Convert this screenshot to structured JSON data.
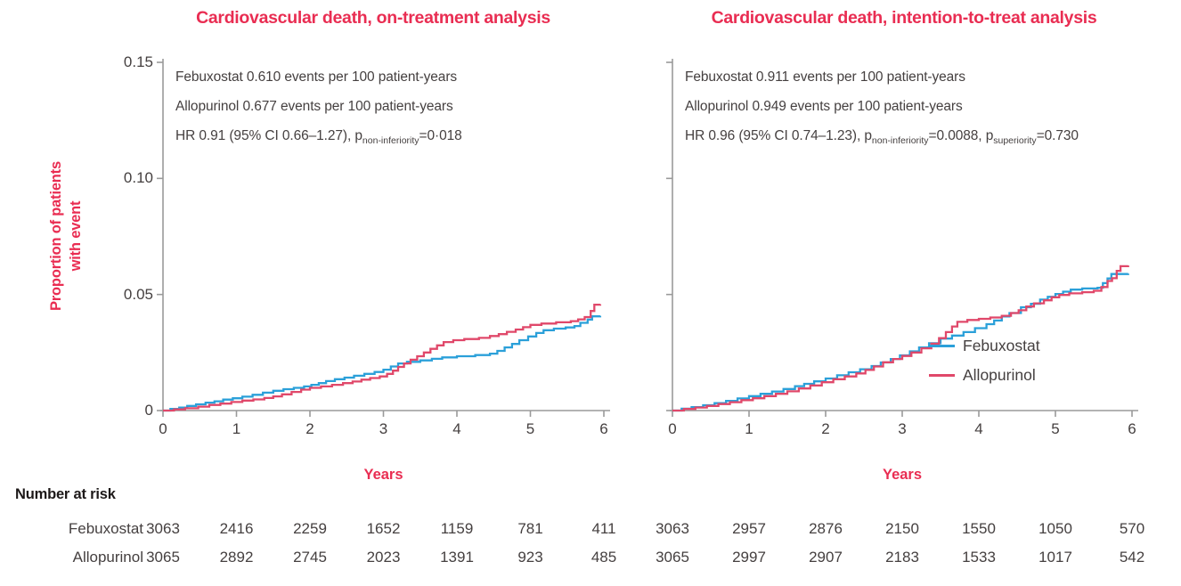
{
  "figure": {
    "colors": {
      "accent_pink": "#e92d52",
      "febuxostat_blue": "#2ba0d9",
      "allopurinol_red": "#e0486a",
      "axis_gray": "#9a9a9a",
      "text_dark": "#454040",
      "header_dark": "#1d1919"
    },
    "ylabel_line1": "Proportion of patients",
    "ylabel_line2": "with event",
    "number_at_risk_header": "Number at risk",
    "risk_row_labels": [
      "Febuxostat",
      "Allopurinol"
    ]
  },
  "chart_data": [
    {
      "type": "line",
      "title": "Cardiovascular death, on-treatment analysis",
      "xlabel": "Years",
      "ylabel": "Proportion of patients with event",
      "xlim": [
        0,
        6
      ],
      "ylim": [
        0,
        0.15
      ],
      "xticks": [
        0,
        1,
        2,
        3,
        4,
        5,
        6
      ],
      "yticks": [
        0,
        0.05,
        0.1,
        0.15
      ],
      "ytick_labels": [
        "0",
        "0.05",
        "0.10",
        "0.15"
      ],
      "grid": false,
      "annotations": {
        "line1": "Febuxostat 0.610 events per 100 patient-years",
        "line2": "Allopurinol 0.677 events per 100 patient-years",
        "hr_segments": [
          {
            "text": "HR 0.91 (95% CI 0.66–1.27), p"
          },
          {
            "sub": "non-inferiority"
          },
          {
            "text": "=0·018"
          }
        ]
      },
      "series": [
        {
          "name": "Febuxostat",
          "color_key": "febuxostat_blue",
          "step": true,
          "points": [
            [
              0,
              0
            ],
            [
              0.1,
              0.0007
            ],
            [
              0.22,
              0.0013
            ],
            [
              0.33,
              0.002
            ],
            [
              0.45,
              0.0027
            ],
            [
              0.58,
              0.0034
            ],
            [
              0.7,
              0.004
            ],
            [
              0.82,
              0.0047
            ],
            [
              0.95,
              0.0053
            ],
            [
              1.08,
              0.006
            ],
            [
              1.22,
              0.0068
            ],
            [
              1.36,
              0.0077
            ],
            [
              1.5,
              0.0085
            ],
            [
              1.64,
              0.0092
            ],
            [
              1.78,
              0.0098
            ],
            [
              1.92,
              0.0104
            ],
            [
              2.02,
              0.0111
            ],
            [
              2.12,
              0.0118
            ],
            [
              2.22,
              0.0127
            ],
            [
              2.34,
              0.0135
            ],
            [
              2.47,
              0.0142
            ],
            [
              2.6,
              0.015
            ],
            [
              2.74,
              0.0158
            ],
            [
              2.88,
              0.0166
            ],
            [
              3.0,
              0.0176
            ],
            [
              3.1,
              0.019
            ],
            [
              3.2,
              0.0203
            ],
            [
              3.32,
              0.021
            ],
            [
              3.5,
              0.0216
            ],
            [
              3.66,
              0.0223
            ],
            [
              3.8,
              0.0229
            ],
            [
              4.0,
              0.0234
            ],
            [
              4.25,
              0.0239
            ],
            [
              4.45,
              0.0245
            ],
            [
              4.55,
              0.0257
            ],
            [
              4.65,
              0.0272
            ],
            [
              4.75,
              0.0287
            ],
            [
              4.85,
              0.0303
            ],
            [
              4.97,
              0.0319
            ],
            [
              5.08,
              0.0334
            ],
            [
              5.18,
              0.0346
            ],
            [
              5.32,
              0.0353
            ],
            [
              5.48,
              0.0358
            ],
            [
              5.6,
              0.0364
            ],
            [
              5.68,
              0.0378
            ],
            [
              5.78,
              0.0392
            ],
            [
              5.84,
              0.0406
            ],
            [
              5.95,
              0.0408
            ]
          ]
        },
        {
          "name": "Allopurinol",
          "color_key": "allopurinol_red",
          "step": true,
          "points": [
            [
              0,
              0
            ],
            [
              0.15,
              0.0005
            ],
            [
              0.3,
              0.001
            ],
            [
              0.48,
              0.0017
            ],
            [
              0.63,
              0.0024
            ],
            [
              0.78,
              0.003
            ],
            [
              0.93,
              0.0037
            ],
            [
              1.08,
              0.0043
            ],
            [
              1.23,
              0.0048
            ],
            [
              1.38,
              0.0054
            ],
            [
              1.5,
              0.0061
            ],
            [
              1.62,
              0.007
            ],
            [
              1.75,
              0.008
            ],
            [
              1.88,
              0.009
            ],
            [
              2.0,
              0.0098
            ],
            [
              2.15,
              0.0104
            ],
            [
              2.3,
              0.0111
            ],
            [
              2.45,
              0.0118
            ],
            [
              2.58,
              0.0125
            ],
            [
              2.7,
              0.0133
            ],
            [
              2.82,
              0.014
            ],
            [
              2.95,
              0.0147
            ],
            [
              3.05,
              0.0158
            ],
            [
              3.13,
              0.0172
            ],
            [
              3.2,
              0.0188
            ],
            [
              3.28,
              0.0203
            ],
            [
              3.37,
              0.0219
            ],
            [
              3.46,
              0.0234
            ],
            [
              3.55,
              0.025
            ],
            [
              3.64,
              0.0266
            ],
            [
              3.73,
              0.0281
            ],
            [
              3.82,
              0.0295
            ],
            [
              3.95,
              0.0303
            ],
            [
              4.1,
              0.0308
            ],
            [
              4.3,
              0.0313
            ],
            [
              4.45,
              0.0321
            ],
            [
              4.57,
              0.0329
            ],
            [
              4.68,
              0.0339
            ],
            [
              4.8,
              0.0349
            ],
            [
              4.9,
              0.0359
            ],
            [
              5.0,
              0.0369
            ],
            [
              5.15,
              0.0375
            ],
            [
              5.35,
              0.038
            ],
            [
              5.55,
              0.0385
            ],
            [
              5.65,
              0.0393
            ],
            [
              5.74,
              0.0403
            ],
            [
              5.82,
              0.0429
            ],
            [
              5.87,
              0.0456
            ],
            [
              5.95,
              0.0458
            ]
          ]
        }
      ],
      "number_at_risk": {
        "Febuxostat": [
          3063,
          2416,
          2259,
          1652,
          1159,
          781,
          411
        ],
        "Allopurinol": [
          3065,
          2892,
          2745,
          2023,
          1391,
          923,
          485
        ]
      }
    },
    {
      "type": "line",
      "title": "Cardiovascular death, intention-to-treat analysis",
      "xlabel": "Years",
      "ylabel": "Proportion of patients with event",
      "xlim": [
        0,
        6
      ],
      "ylim": [
        0,
        0.15
      ],
      "xticks": [
        0,
        1,
        2,
        3,
        4,
        5,
        6
      ],
      "yticks": [
        0,
        0.05,
        0.1,
        0.15
      ],
      "ytick_labels": [],
      "grid": false,
      "legend": {
        "position": "middle-right",
        "entries": [
          "Febuxostat",
          "Allopurinol"
        ]
      },
      "annotations": {
        "line1": "Febuxostat 0.911 events per 100 patient-years",
        "line2": "Allopurinol 0.949 events per 100 patient-years",
        "hr_segments": [
          {
            "text": "HR 0.96 (95% CI 0.74–1.23), p"
          },
          {
            "sub": "non-inferiority"
          },
          {
            "text": "=0.0088, p"
          },
          {
            "sub": "superiority"
          },
          {
            "text": "=0.730"
          }
        ]
      },
      "series": [
        {
          "name": "Febuxostat",
          "color_key": "febuxostat_blue",
          "step": true,
          "points": [
            [
              0,
              0
            ],
            [
              0.12,
              0.0008
            ],
            [
              0.25,
              0.0015
            ],
            [
              0.4,
              0.0023
            ],
            [
              0.55,
              0.0032
            ],
            [
              0.7,
              0.0042
            ],
            [
              0.85,
              0.0052
            ],
            [
              1.0,
              0.0062
            ],
            [
              1.15,
              0.0072
            ],
            [
              1.3,
              0.0082
            ],
            [
              1.45,
              0.0093
            ],
            [
              1.6,
              0.0105
            ],
            [
              1.72,
              0.0115
            ],
            [
              1.85,
              0.0126
            ],
            [
              2.0,
              0.0138
            ],
            [
              2.15,
              0.0152
            ],
            [
              2.3,
              0.0165
            ],
            [
              2.45,
              0.0178
            ],
            [
              2.6,
              0.0192
            ],
            [
              2.72,
              0.0207
            ],
            [
              2.85,
              0.0222
            ],
            [
              2.97,
              0.0238
            ],
            [
              3.1,
              0.0255
            ],
            [
              3.22,
              0.0272
            ],
            [
              3.35,
              0.029
            ],
            [
              3.5,
              0.031
            ],
            [
              3.65,
              0.0323
            ],
            [
              3.8,
              0.0338
            ],
            [
              3.95,
              0.0355
            ],
            [
              4.1,
              0.0372
            ],
            [
              4.2,
              0.0388
            ],
            [
              4.3,
              0.0405
            ],
            [
              4.4,
              0.042
            ],
            [
              4.55,
              0.0445
            ],
            [
              4.68,
              0.046
            ],
            [
              4.8,
              0.0478
            ],
            [
              4.9,
              0.049
            ],
            [
              5.0,
              0.0502
            ],
            [
              5.1,
              0.0512
            ],
            [
              5.2,
              0.0521
            ],
            [
              5.35,
              0.0526
            ],
            [
              5.55,
              0.0529
            ],
            [
              5.62,
              0.0549
            ],
            [
              5.68,
              0.0569
            ],
            [
              5.73,
              0.0588
            ],
            [
              5.95,
              0.059
            ]
          ]
        },
        {
          "name": "Allopurinol",
          "color_key": "allopurinol_red",
          "step": true,
          "points": [
            [
              0,
              0
            ],
            [
              0.15,
              0.0007
            ],
            [
              0.3,
              0.0013
            ],
            [
              0.45,
              0.002
            ],
            [
              0.6,
              0.0028
            ],
            [
              0.75,
              0.0036
            ],
            [
              0.9,
              0.0045
            ],
            [
              1.05,
              0.0053
            ],
            [
              1.2,
              0.0062
            ],
            [
              1.35,
              0.0072
            ],
            [
              1.5,
              0.0083
            ],
            [
              1.65,
              0.0095
            ],
            [
              1.8,
              0.0108
            ],
            [
              1.95,
              0.0122
            ],
            [
              2.1,
              0.0135
            ],
            [
              2.25,
              0.0147
            ],
            [
              2.4,
              0.016
            ],
            [
              2.52,
              0.0175
            ],
            [
              2.63,
              0.019
            ],
            [
              2.75,
              0.0208
            ],
            [
              2.88,
              0.0222
            ],
            [
              3.0,
              0.0235
            ],
            [
              3.12,
              0.025
            ],
            [
              3.25,
              0.0268
            ],
            [
              3.38,
              0.0288
            ],
            [
              3.48,
              0.0312
            ],
            [
              3.57,
              0.0338
            ],
            [
              3.65,
              0.0362
            ],
            [
              3.72,
              0.0382
            ],
            [
              3.85,
              0.039
            ],
            [
              4.0,
              0.0395
            ],
            [
              4.15,
              0.0401
            ],
            [
              4.3,
              0.0408
            ],
            [
              4.42,
              0.042
            ],
            [
              4.52,
              0.0432
            ],
            [
              4.62,
              0.0448
            ],
            [
              4.72,
              0.0462
            ],
            [
              4.85,
              0.0475
            ],
            [
              4.95,
              0.0488
            ],
            [
              5.05,
              0.0498
            ],
            [
              5.18,
              0.0505
            ],
            [
              5.35,
              0.051
            ],
            [
              5.5,
              0.0516
            ],
            [
              5.6,
              0.0532
            ],
            [
              5.68,
              0.0558
            ],
            [
              5.74,
              0.057
            ],
            [
              5.8,
              0.0602
            ],
            [
              5.85,
              0.0622
            ],
            [
              5.95,
              0.0625
            ]
          ]
        }
      ],
      "number_at_risk": {
        "Febuxostat": [
          3063,
          2957,
          2876,
          2150,
          1550,
          1050,
          570
        ],
        "Allopurinol": [
          3065,
          2997,
          2907,
          2183,
          1533,
          1017,
          542
        ]
      }
    }
  ]
}
